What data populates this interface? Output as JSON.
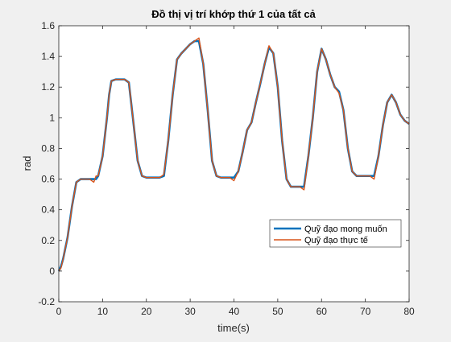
{
  "chart_data": {
    "type": "line",
    "title": "Đồ thị vị trí khớp thứ 1 của tất cả",
    "xlabel": "time(s)",
    "ylabel": "rad",
    "xlim": [
      0,
      80
    ],
    "ylim": [
      -0.2,
      1.6
    ],
    "x_ticks": [
      "0",
      "10",
      "20",
      "30",
      "40",
      "50",
      "60",
      "70",
      "80"
    ],
    "y_ticks": [
      "-0.2",
      "0",
      "0.2",
      "0.4",
      "0.6",
      "0.8",
      "1",
      "1.2",
      "1.4",
      "1.6"
    ],
    "grid": false,
    "legend_position": "right",
    "series": [
      {
        "name": "Quỹ đạo mong muốn",
        "color": "#0072BD",
        "x": [
          0,
          0.5,
          1,
          2,
          3,
          4,
          5,
          6,
          7,
          8,
          8.5,
          9,
          10,
          11,
          11.5,
          12,
          13,
          14,
          15,
          16,
          17,
          18,
          19,
          20,
          21,
          22,
          23,
          24,
          25,
          26,
          27,
          28,
          29,
          30,
          31,
          32,
          33,
          34,
          35,
          36,
          37,
          38,
          39,
          40,
          41,
          42,
          43,
          44,
          45,
          46,
          47,
          48,
          49,
          50,
          51,
          52,
          53,
          54,
          55,
          56,
          57,
          58,
          59,
          60,
          61,
          62,
          63,
          64,
          65,
          66,
          67,
          68,
          69,
          70,
          71,
          72,
          73,
          74,
          75,
          76,
          77,
          78,
          79,
          80
        ],
        "y": [
          0,
          0.03,
          0.08,
          0.22,
          0.42,
          0.58,
          0.6,
          0.6,
          0.6,
          0.6,
          0.6,
          0.62,
          0.75,
          1.0,
          1.15,
          1.24,
          1.25,
          1.25,
          1.25,
          1.23,
          0.98,
          0.72,
          0.62,
          0.61,
          0.61,
          0.61,
          0.61,
          0.62,
          0.85,
          1.15,
          1.38,
          1.42,
          1.45,
          1.48,
          1.5,
          1.5,
          1.35,
          1.05,
          0.72,
          0.62,
          0.61,
          0.61,
          0.61,
          0.61,
          0.65,
          0.78,
          0.92,
          0.97,
          1.1,
          1.22,
          1.35,
          1.46,
          1.42,
          1.2,
          0.85,
          0.6,
          0.55,
          0.55,
          0.55,
          0.55,
          0.75,
          1.0,
          1.3,
          1.45,
          1.38,
          1.28,
          1.2,
          1.17,
          1.05,
          0.8,
          0.65,
          0.62,
          0.62,
          0.62,
          0.62,
          0.62,
          0.75,
          0.95,
          1.1,
          1.15,
          1.1,
          1.02,
          0.98,
          0.96
        ]
      },
      {
        "name": "Quỹ đạo thực tế",
        "color": "#D95319",
        "x": [
          0,
          0.5,
          1,
          2,
          3,
          4,
          5,
          6,
          7,
          8,
          8.5,
          9,
          10,
          11,
          11.5,
          12,
          13,
          14,
          15,
          16,
          17,
          18,
          19,
          20,
          21,
          22,
          23,
          24,
          25,
          26,
          27,
          28,
          29,
          30,
          31,
          32,
          33,
          34,
          35,
          36,
          37,
          38,
          39,
          40,
          41,
          42,
          43,
          44,
          45,
          46,
          47,
          48,
          49,
          50,
          51,
          52,
          53,
          54,
          55,
          56,
          57,
          58,
          59,
          60,
          61,
          62,
          63,
          64,
          65,
          66,
          67,
          68,
          69,
          70,
          71,
          72,
          73,
          74,
          75,
          76,
          77,
          78,
          79,
          80
        ],
        "y": [
          0,
          0.02,
          0.08,
          0.22,
          0.42,
          0.58,
          0.6,
          0.6,
          0.6,
          0.58,
          0.62,
          0.62,
          0.75,
          1.0,
          1.15,
          1.24,
          1.25,
          1.25,
          1.25,
          1.23,
          0.98,
          0.72,
          0.62,
          0.61,
          0.61,
          0.61,
          0.61,
          0.63,
          0.85,
          1.15,
          1.38,
          1.42,
          1.45,
          1.48,
          1.5,
          1.52,
          1.35,
          1.05,
          0.72,
          0.62,
          0.61,
          0.61,
          0.61,
          0.59,
          0.65,
          0.78,
          0.92,
          0.97,
          1.1,
          1.22,
          1.35,
          1.47,
          1.42,
          1.2,
          0.85,
          0.6,
          0.55,
          0.55,
          0.55,
          0.53,
          0.75,
          1.0,
          1.3,
          1.45,
          1.38,
          1.28,
          1.2,
          1.16,
          1.05,
          0.8,
          0.65,
          0.62,
          0.62,
          0.62,
          0.62,
          0.6,
          0.75,
          0.95,
          1.1,
          1.15,
          1.1,
          1.02,
          0.98,
          0.96
        ]
      }
    ]
  }
}
